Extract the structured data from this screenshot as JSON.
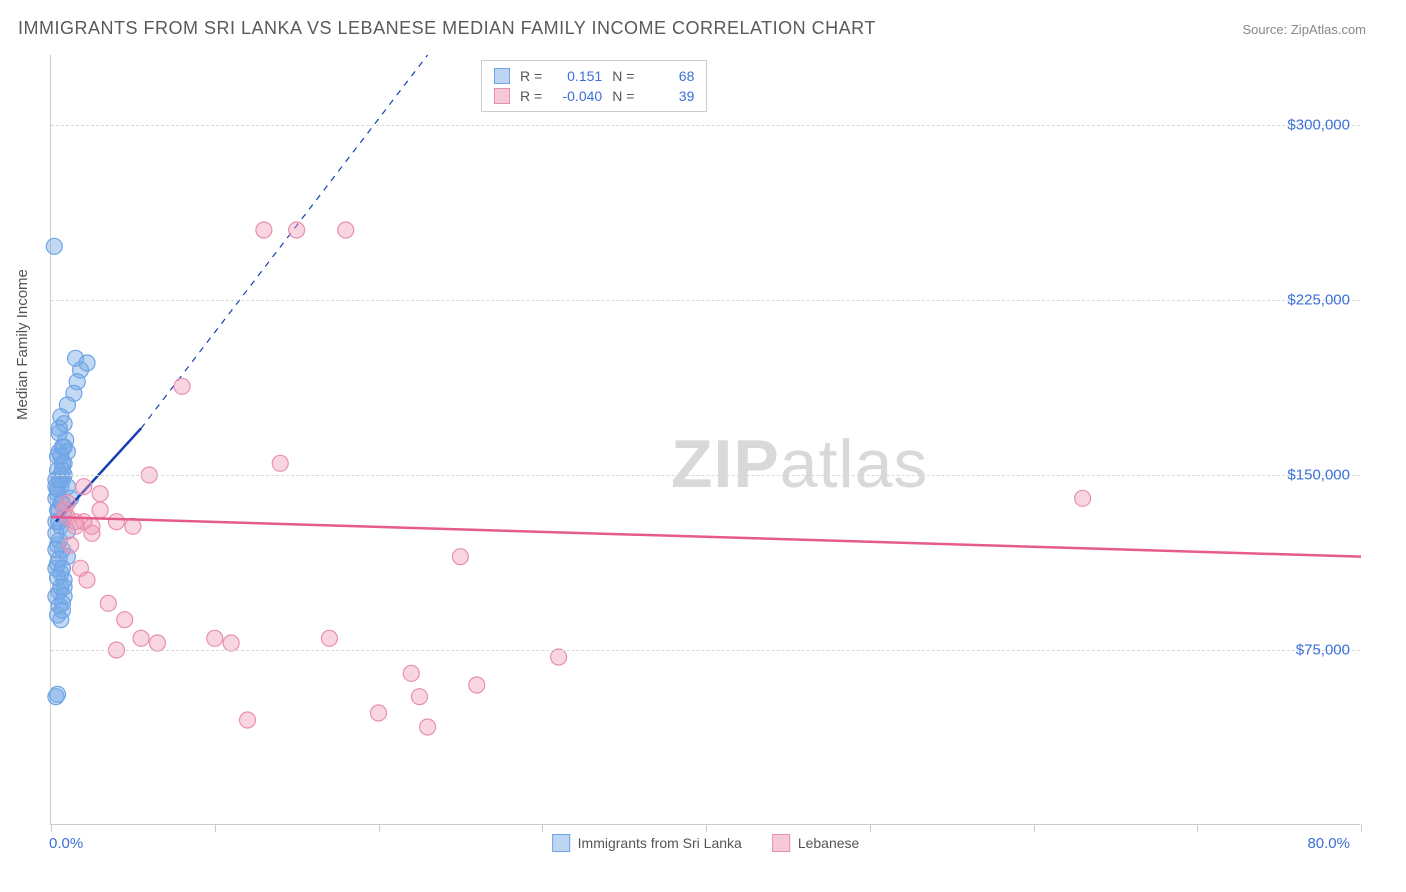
{
  "title": "IMMIGRANTS FROM SRI LANKA VS LEBANESE MEDIAN FAMILY INCOME CORRELATION CHART",
  "source_label": "Source: ZipAtlas.com",
  "ylabel": "Median Family Income",
  "watermark_bold": "ZIP",
  "watermark_light": "atlas",
  "chart": {
    "type": "scatter",
    "background_color": "#ffffff",
    "grid_color": "#d8d8d8",
    "axis_color": "#cccccc",
    "value_color": "#3b6fd8",
    "label_color": "#555555",
    "title_color": "#5a5a5a",
    "title_fontsize": 18,
    "label_fontsize": 15,
    "tick_fontsize": 15,
    "x": {
      "min": 0.0,
      "max": 80.0,
      "label_min": "0.0%",
      "label_max": "80.0%",
      "ticks_pct": [
        0,
        12.5,
        25,
        37.5,
        50,
        62.5,
        75,
        87.5,
        100
      ]
    },
    "y": {
      "min": 0,
      "max": 330000,
      "gridlines": [
        75000,
        150000,
        225000,
        300000
      ],
      "labels": [
        "$75,000",
        "$150,000",
        "$225,000",
        "$300,000"
      ]
    },
    "series": [
      {
        "name": "Immigrants from Sri Lanka",
        "swatch_fill": "#bcd5f3",
        "swatch_border": "#6ea3e6",
        "point_fill": "rgba(120,170,230,0.45)",
        "point_stroke": "#6ea3e6",
        "point_radius": 8,
        "trend": {
          "color": "#1740b3",
          "width": 2.5,
          "x1": 0.3,
          "y1": 130000,
          "x2": 5.5,
          "y2": 170000,
          "dash_extend_to_x": 23,
          "dash_extend_to_y": 330000
        },
        "stats": {
          "R": "0.151",
          "N": "68"
        },
        "points": [
          [
            0.3,
            130000
          ],
          [
            0.5,
            135000
          ],
          [
            0.4,
            142000
          ],
          [
            0.6,
            128000
          ],
          [
            0.8,
            150000
          ],
          [
            0.5,
            160000
          ],
          [
            0.7,
            155000
          ],
          [
            1.0,
            145000
          ],
          [
            0.4,
            120000
          ],
          [
            0.9,
            165000
          ],
          [
            1.2,
            140000
          ],
          [
            0.6,
            175000
          ],
          [
            0.3,
            110000
          ],
          [
            0.5,
            100000
          ],
          [
            0.7,
            95000
          ],
          [
            0.4,
            90000
          ],
          [
            0.8,
            105000
          ],
          [
            1.0,
            115000
          ],
          [
            0.6,
            88000
          ],
          [
            0.3,
            55000
          ],
          [
            0.4,
            56000
          ],
          [
            1.5,
            200000
          ],
          [
            1.8,
            195000
          ],
          [
            2.2,
            198000
          ],
          [
            1.6,
            190000
          ],
          [
            1.4,
            185000
          ],
          [
            1.0,
            180000
          ],
          [
            0.8,
            172000
          ],
          [
            0.5,
            168000
          ],
          [
            0.7,
            162000
          ],
          [
            0.4,
            158000
          ],
          [
            0.3,
            148000
          ],
          [
            0.6,
            138000
          ],
          [
            0.8,
            132000
          ],
          [
            1.0,
            126000
          ],
          [
            0.5,
            122000
          ],
          [
            0.7,
            118000
          ],
          [
            0.4,
            112000
          ],
          [
            0.6,
            108000
          ],
          [
            0.8,
            102000
          ],
          [
            0.3,
            98000
          ],
          [
            0.5,
            94000
          ],
          [
            0.7,
            92000
          ],
          [
            0.4,
            135000
          ],
          [
            0.6,
            145000
          ],
          [
            0.8,
            155000
          ],
          [
            1.0,
            160000
          ],
          [
            0.5,
            170000
          ],
          [
            0.3,
            140000
          ],
          [
            0.7,
            148000
          ],
          [
            0.4,
            152000
          ],
          [
            0.6,
            158000
          ],
          [
            0.8,
            162000
          ],
          [
            0.3,
            125000
          ],
          [
            0.5,
            130000
          ],
          [
            0.7,
            138000
          ],
          [
            0.4,
            144000
          ],
          [
            0.6,
            150000
          ],
          [
            0.2,
            248000
          ],
          [
            0.3,
            118000
          ],
          [
            0.5,
            114000
          ],
          [
            0.7,
            110000
          ],
          [
            0.4,
            106000
          ],
          [
            0.6,
            102000
          ],
          [
            0.8,
            98000
          ],
          [
            0.3,
            145000
          ],
          [
            0.5,
            148000
          ],
          [
            0.7,
            152000
          ]
        ]
      },
      {
        "name": "Lebanese",
        "swatch_fill": "#f6c9d6",
        "swatch_border": "#e88fb0",
        "point_fill": "rgba(240,150,180,0.40)",
        "point_stroke": "#e88fb0",
        "point_radius": 8,
        "trend": {
          "color": "#e75a8d",
          "width": 2.5,
          "x1": 0,
          "y1": 132000,
          "x2": 80,
          "y2": 115000
        },
        "stats": {
          "R": "-0.040",
          "N": "39"
        },
        "points": [
          [
            1.0,
            132000
          ],
          [
            1.5,
            128000
          ],
          [
            2.0,
            130000
          ],
          [
            2.5,
            125000
          ],
          [
            3.0,
            135000
          ],
          [
            4.0,
            130000
          ],
          [
            5.0,
            128000
          ],
          [
            6.0,
            150000
          ],
          [
            8.0,
            188000
          ],
          [
            10.0,
            80000
          ],
          [
            11.0,
            78000
          ],
          [
            12.0,
            45000
          ],
          [
            13.0,
            255000
          ],
          [
            14.0,
            155000
          ],
          [
            15.0,
            255000
          ],
          [
            17.0,
            80000
          ],
          [
            18.0,
            255000
          ],
          [
            20.0,
            48000
          ],
          [
            22.0,
            65000
          ],
          [
            22.5,
            55000
          ],
          [
            23.0,
            42000
          ],
          [
            25.0,
            115000
          ],
          [
            26.0,
            60000
          ],
          [
            31.0,
            72000
          ],
          [
            63.0,
            140000
          ],
          [
            1.2,
            120000
          ],
          [
            1.8,
            110000
          ],
          [
            2.2,
            105000
          ],
          [
            3.5,
            95000
          ],
          [
            4.5,
            88000
          ],
          [
            5.5,
            80000
          ],
          [
            6.5,
            78000
          ],
          [
            2.0,
            145000
          ],
          [
            3.0,
            142000
          ],
          [
            1.0,
            138000
          ],
          [
            0.8,
            135000
          ],
          [
            1.5,
            130000
          ],
          [
            2.5,
            128000
          ],
          [
            4.0,
            75000
          ]
        ]
      }
    ],
    "stats_box": {
      "R_label": "R =",
      "N_label": "N ="
    },
    "legend_bottom_gap": 30
  }
}
